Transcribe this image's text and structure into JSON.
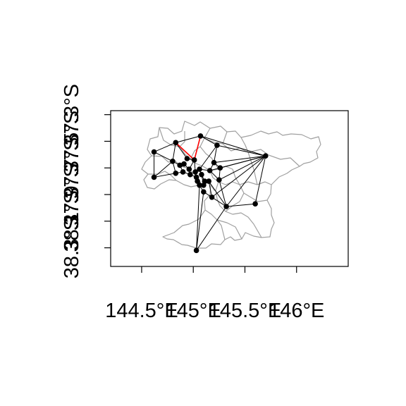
{
  "map": {
    "x_ticks": [
      "144.5°E",
      "145°E",
      "145.5°E",
      "146°E"
    ],
    "y_ticks": [
      "38.3°S",
      "38.1°S",
      "37.9°S",
      "37.7°S",
      "37.5°S",
      "37.3°S"
    ],
    "x_tick_values": [
      144.5,
      145.0,
      145.5,
      146.0
    ],
    "y_tick_values": [
      -38.3,
      -38.1,
      -37.9,
      -37.7,
      -37.5,
      -37.3
    ],
    "x_range": [
      144.2,
      146.5
    ],
    "y_range": [
      -38.44,
      -37.27
    ],
    "colors": {
      "boundary": "#a0a0a0",
      "edge": "#000000",
      "highlight_edge": "#ff0000",
      "node": "#000000",
      "frame": "#000000"
    },
    "nodes": [
      {
        "id": 0,
        "lon": 144.62,
        "lat": -37.58
      },
      {
        "id": 1,
        "lon": 144.62,
        "lat": -37.77
      },
      {
        "id": 2,
        "lon": 144.83,
        "lat": -37.51
      },
      {
        "id": 3,
        "lon": 145.07,
        "lat": -37.46
      },
      {
        "id": 4,
        "lon": 145.23,
        "lat": -37.53
      },
      {
        "id": 5,
        "lon": 145.7,
        "lat": -37.61
      },
      {
        "id": 6,
        "lon": 144.8,
        "lat": -37.65
      },
      {
        "id": 7,
        "lon": 144.87,
        "lat": -37.68
      },
      {
        "id": 8,
        "lon": 144.83,
        "lat": -37.74
      },
      {
        "id": 9,
        "lon": 144.94,
        "lat": -37.63
      },
      {
        "id": 10,
        "lon": 144.91,
        "lat": -37.67
      },
      {
        "id": 11,
        "lon": 144.96,
        "lat": -37.71
      },
      {
        "id": 12,
        "lon": 145.01,
        "lat": -37.64
      },
      {
        "id": 13,
        "lon": 144.9,
        "lat": -37.73
      },
      {
        "id": 14,
        "lon": 144.97,
        "lat": -37.75
      },
      {
        "id": 15,
        "lon": 145.02,
        "lat": -37.73
      },
      {
        "id": 16,
        "lon": 145.06,
        "lat": -37.71
      },
      {
        "id": 17,
        "lon": 145.03,
        "lat": -37.77
      },
      {
        "id": 18,
        "lon": 145.08,
        "lat": -37.75
      },
      {
        "id": 19,
        "lon": 145.04,
        "lat": -37.8
      },
      {
        "id": 20,
        "lon": 145.06,
        "lat": -37.83
      },
      {
        "id": 21,
        "lon": 145.11,
        "lat": -37.8
      },
      {
        "id": 22,
        "lon": 145.16,
        "lat": -37.72
      },
      {
        "id": 23,
        "lon": 145.2,
        "lat": -37.66
      },
      {
        "id": 24,
        "lon": 145.26,
        "lat": -37.7
      },
      {
        "id": 25,
        "lon": 145.25,
        "lat": -37.79
      },
      {
        "id": 26,
        "lon": 145.15,
        "lat": -37.8
      },
      {
        "id": 27,
        "lon": 145.1,
        "lat": -37.88
      },
      {
        "id": 28,
        "lon": 145.18,
        "lat": -37.92
      },
      {
        "id": 29,
        "lon": 145.32,
        "lat": -37.99
      },
      {
        "id": 30,
        "lon": 145.6,
        "lat": -37.97
      },
      {
        "id": 31,
        "lon": 145.03,
        "lat": -38.32
      },
      {
        "id": 32,
        "lon": 145.1,
        "lat": -37.83
      }
    ],
    "edges": [
      [
        0,
        2
      ],
      [
        0,
        1
      ],
      [
        0,
        6
      ],
      [
        1,
        6
      ],
      [
        1,
        8
      ],
      [
        2,
        3
      ],
      [
        2,
        9
      ],
      [
        2,
        6
      ],
      [
        3,
        4
      ],
      [
        3,
        12
      ],
      [
        3,
        5
      ],
      [
        4,
        5
      ],
      [
        4,
        23
      ],
      [
        4,
        16
      ],
      [
        5,
        23
      ],
      [
        5,
        24
      ],
      [
        5,
        25
      ],
      [
        5,
        22
      ],
      [
        5,
        28
      ],
      [
        5,
        29
      ],
      [
        5,
        30
      ],
      [
        6,
        7
      ],
      [
        6,
        8
      ],
      [
        7,
        10
      ],
      [
        7,
        13
      ],
      [
        8,
        13
      ],
      [
        9,
        12
      ],
      [
        10,
        11
      ],
      [
        11,
        14
      ],
      [
        11,
        12
      ],
      [
        12,
        15
      ],
      [
        13,
        14
      ],
      [
        14,
        17
      ],
      [
        15,
        16
      ],
      [
        15,
        17
      ],
      [
        16,
        18
      ],
      [
        16,
        22
      ],
      [
        17,
        19
      ],
      [
        18,
        21
      ],
      [
        18,
        32
      ],
      [
        19,
        20
      ],
      [
        20,
        27
      ],
      [
        20,
        31
      ],
      [
        21,
        26
      ],
      [
        22,
        23
      ],
      [
        22,
        25
      ],
      [
        23,
        24
      ],
      [
        24,
        25
      ],
      [
        25,
        29
      ],
      [
        26,
        28
      ],
      [
        26,
        29
      ],
      [
        27,
        28
      ],
      [
        27,
        31
      ],
      [
        28,
        29
      ],
      [
        29,
        30
      ],
      [
        29,
        31
      ],
      [
        19,
        32
      ],
      [
        32,
        26
      ]
    ],
    "highlight_edges": [
      [
        2,
        12
      ],
      [
        3,
        12
      ]
    ]
  }
}
